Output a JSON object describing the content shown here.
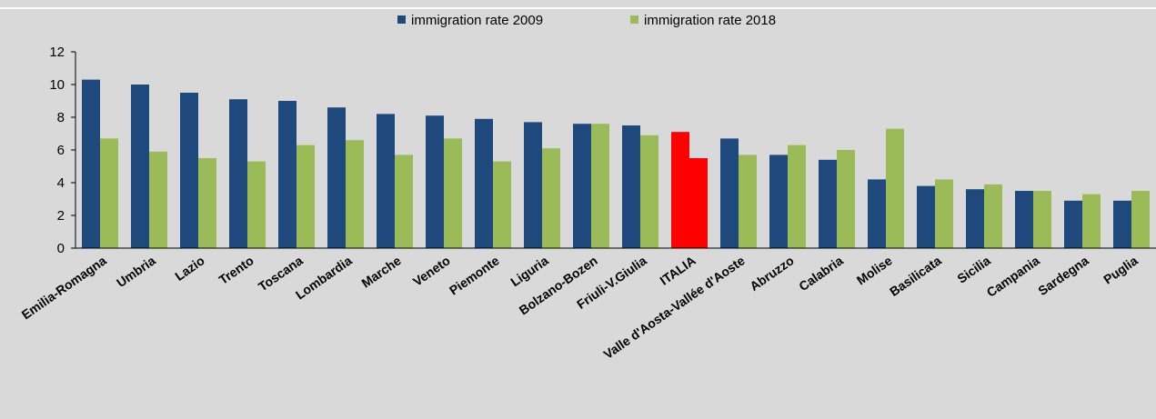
{
  "chart_data": {
    "type": "bar",
    "categories": [
      "Emilia-Romagna",
      "Umbria",
      "Lazio",
      "Trento",
      "Toscana",
      "Lombardia",
      "Marche",
      "Veneto",
      "Piemonte",
      "Liguria",
      "Bolzano-Bozen",
      "Friuli-V.Giulia",
      "ITALIA",
      "Valle d'Aosta-Vallée d'Aoste",
      "Abruzzo",
      "Calabria",
      "Molise",
      "Basilicata",
      "Sicilia",
      "Campania",
      "Sardegna",
      "Puglia"
    ],
    "series": [
      {
        "name": "immigration rate 2009",
        "color": "#1f497d",
        "values": [
          10.3,
          10.0,
          9.5,
          9.1,
          9.0,
          8.6,
          8.2,
          8.1,
          7.9,
          7.7,
          7.6,
          7.5,
          7.1,
          6.7,
          5.7,
          5.4,
          4.2,
          3.8,
          3.6,
          3.5,
          2.9,
          2.9
        ]
      },
      {
        "name": "immigration rate 2018",
        "color": "#9bbb59",
        "values": [
          6.7,
          5.9,
          5.5,
          5.3,
          6.3,
          6.6,
          5.7,
          6.7,
          5.3,
          6.1,
          7.6,
          6.9,
          5.5,
          5.7,
          6.3,
          6.0,
          7.3,
          4.2,
          3.9,
          3.5,
          3.3,
          3.5
        ]
      }
    ],
    "highlight": {
      "category": "ITALIA",
      "color": "#ff0000"
    },
    "yticks": [
      0,
      2,
      4,
      6,
      8,
      10,
      12
    ],
    "ylim": [
      0,
      12
    ],
    "legend_position": "top-center",
    "grid": false
  }
}
